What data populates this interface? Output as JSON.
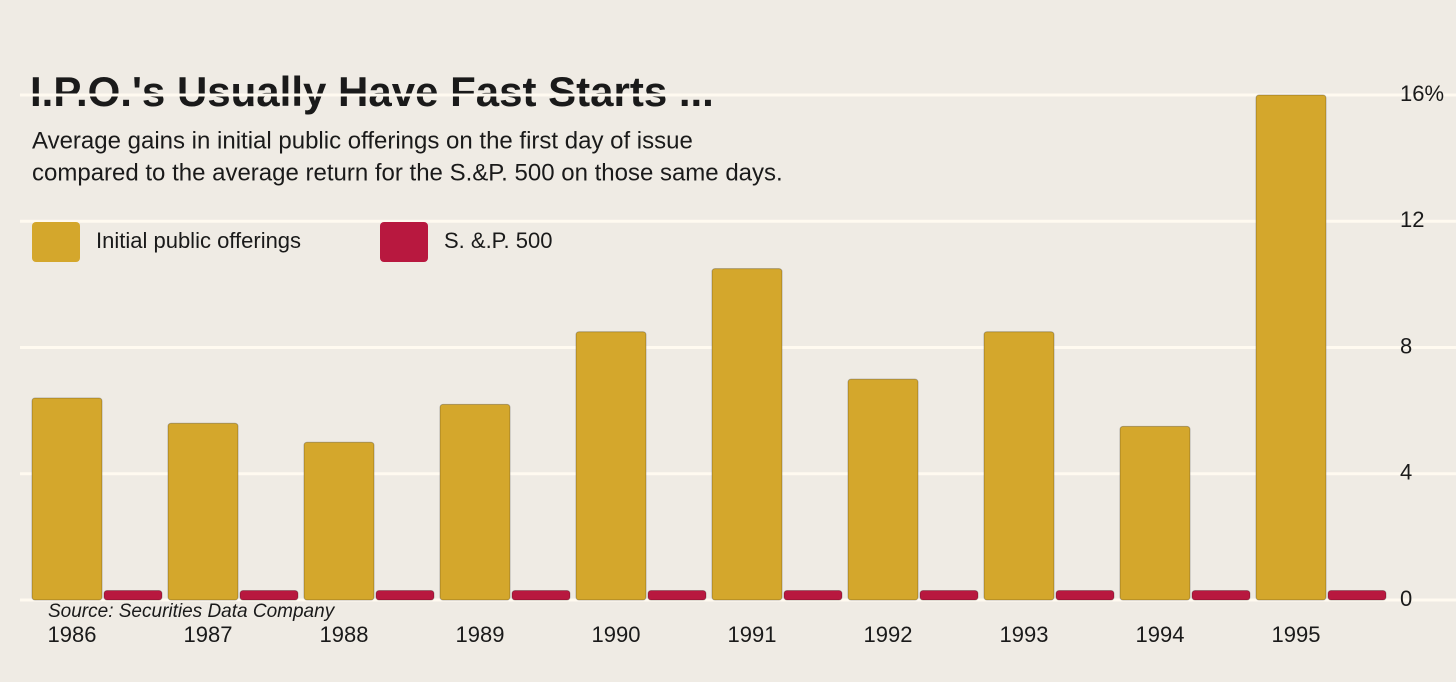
{
  "chart_data": {
    "type": "bar",
    "title": "I.P.O.'s Usually Have Fast Starts ...",
    "subtitle": [
      "Average gains in initial public offerings on the first day of issue",
      "compared to the average return for the S.&P. 500 on those same days."
    ],
    "source": "Source: Securities Data Company",
    "categories": [
      "1986",
      "1987",
      "1988",
      "1989",
      "1990",
      "1991",
      "1992",
      "1993",
      "1994",
      "1995"
    ],
    "series": [
      {
        "name": "Initial public offerings",
        "color": "#d4a72c",
        "values": [
          6.4,
          5.6,
          5.0,
          6.2,
          8.5,
          10.5,
          7.0,
          8.5,
          5.5,
          16.0
        ]
      },
      {
        "name": "S. &.P. 500",
        "color": "#b8183f",
        "values": [
          0.3,
          0.3,
          0.3,
          0.3,
          0.3,
          0.3,
          0.3,
          0.3,
          0.3,
          0.3
        ]
      }
    ],
    "ylim": [
      0,
      16
    ],
    "yticks": [
      0,
      4,
      8,
      12,
      {
        "value": 16,
        "label": "16%"
      }
    ],
    "grid": true
  }
}
